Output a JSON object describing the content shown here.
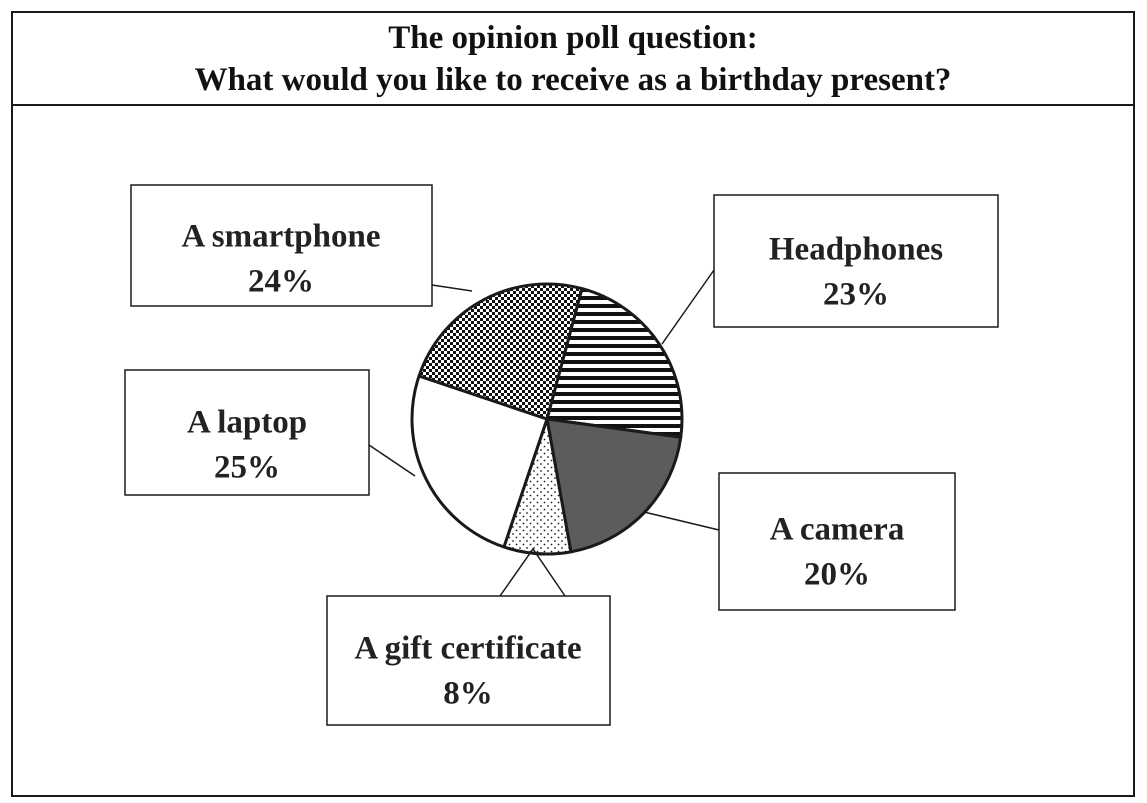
{
  "header": {
    "line1": "The opinion poll question:",
    "line2": "What would you like to receive as a birthday present?"
  },
  "chart_data": {
    "type": "pie",
    "title": "The opinion poll question: What would you like to receive as a birthday present?",
    "slices": [
      {
        "label": "Headphones",
        "value": 23,
        "value_label": "23%",
        "fill": "horizontal-stripes"
      },
      {
        "label": "A camera",
        "value": 20,
        "value_label": "20%",
        "fill": "#5c5c5c"
      },
      {
        "label": "A gift certificate",
        "value": 8,
        "value_label": "8%",
        "fill": "fine-dots"
      },
      {
        "label": "A laptop",
        "value": 25,
        "value_label": "25%",
        "fill": "#ffffff"
      },
      {
        "label": "A smartphone",
        "value": 24,
        "value_label": "24%",
        "fill": "checkered"
      }
    ],
    "start_angle_deg": 15,
    "direction": "clockwise",
    "colors": {
      "outline": "#1a1a1a",
      "dark_slice": "#5c5c5c"
    }
  }
}
